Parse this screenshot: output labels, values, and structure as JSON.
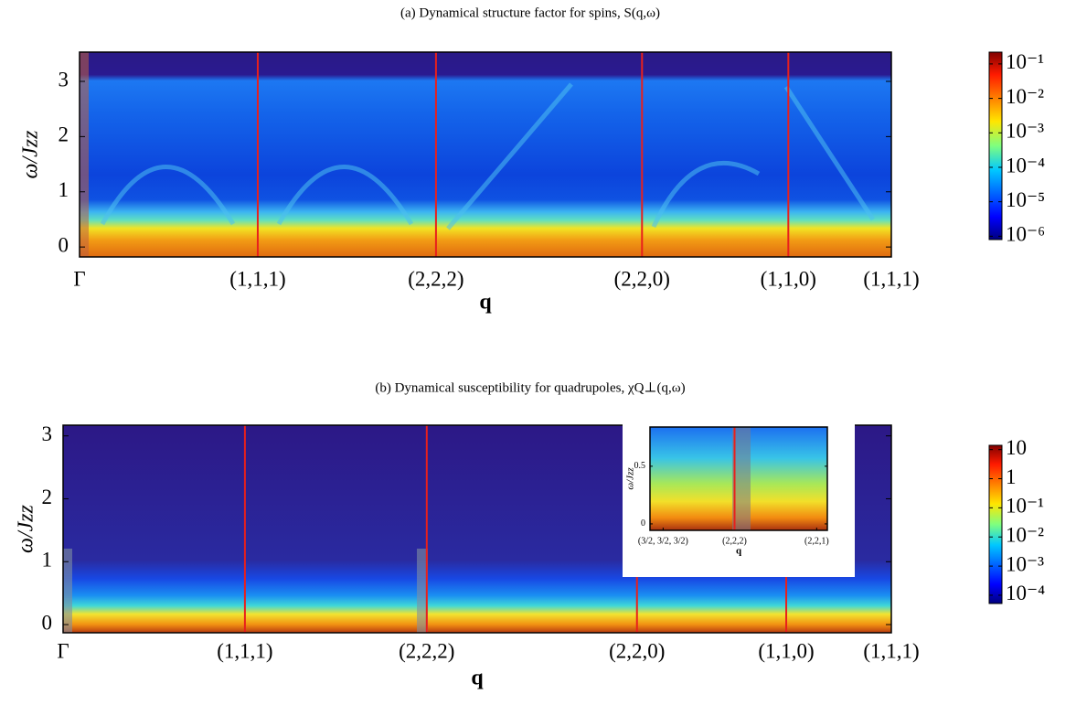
{
  "chart_data": [
    {
      "type": "heatmap",
      "title": "(a) Dynamical structure factor for spins, S(q,ω)",
      "xlabel": "q",
      "ylabel": "ω/Jzz",
      "xlim": [
        0,
        7.88
      ],
      "xticks": [
        {
          "value": 0,
          "label": "Γ"
        },
        {
          "value": 1.73,
          "label": "(1,1,1)"
        },
        {
          "value": 3.46,
          "label": "(2,2,2)"
        },
        {
          "value": 5.46,
          "label": "(2,2,0)"
        },
        {
          "value": 6.88,
          "label": "(1,1,0)"
        },
        {
          "value": 7.88,
          "label": "(1,1,1)"
        }
      ],
      "ylim": [
        -0.18,
        3.53
      ],
      "yticks": [
        0,
        1,
        2,
        3
      ],
      "colorscale": "log",
      "clim": [
        8e-07,
        0.22
      ],
      "cticks": [
        {
          "value": 0.1,
          "label": "10⁻¹"
        },
        {
          "value": 0.01,
          "label": "10⁻²"
        },
        {
          "value": 0.001,
          "label": "10⁻³"
        },
        {
          "value": 0.0001,
          "label": "10⁻⁴"
        },
        {
          "value": 1e-05,
          "label": "10⁻⁵"
        },
        {
          "value": 1e-06,
          "label": "10⁻⁶"
        }
      ]
    },
    {
      "type": "heatmap",
      "title": "(b) Dynamical susceptibility for quadrupoles, χQ⊥(q,ω)",
      "xlabel": "q",
      "ylabel": "ω/Jzz",
      "xlim": [
        0,
        7.88
      ],
      "xticks": [
        {
          "value": 0,
          "label": "Γ"
        },
        {
          "value": 1.73,
          "label": "(1,1,1)"
        },
        {
          "value": 3.46,
          "label": "(2,2,2)"
        },
        {
          "value": 5.46,
          "label": "(2,2,0)"
        },
        {
          "value": 6.88,
          "label": "(1,1,0)"
        },
        {
          "value": 7.88,
          "label": "(1,1,1)"
        }
      ],
      "ylim": [
        -0.13,
        3.17
      ],
      "yticks": [
        0,
        1,
        2,
        3
      ],
      "colorscale": "log",
      "clim": [
        5.2e-05,
        14
      ],
      "cticks": [
        10,
        1,
        {
          "value": 0.1,
          "label": "10⁻¹"
        },
        {
          "value": 0.01,
          "label": "10⁻²"
        },
        {
          "value": 0.001,
          "label": "10⁻³"
        },
        {
          "value": 0.0001,
          "label": "10⁻⁴"
        }
      ]
    },
    {
      "type": "heatmap",
      "xlabel": "q",
      "ylabel": "ω/Jzz",
      "xlim": [
        -0.16,
        2.0
      ],
      "xticks": [
        {
          "value": 0,
          "label": "(3/2, 3/2, 3/2)"
        },
        {
          "value": 0.87,
          "label": "(2,2,2)"
        },
        {
          "value": 1.87,
          "label": "(2,2,1)"
        }
      ],
      "ylim": [
        -0.056,
        0.84
      ],
      "yticks": [
        0,
        0.5
      ]
    }
  ]
}
